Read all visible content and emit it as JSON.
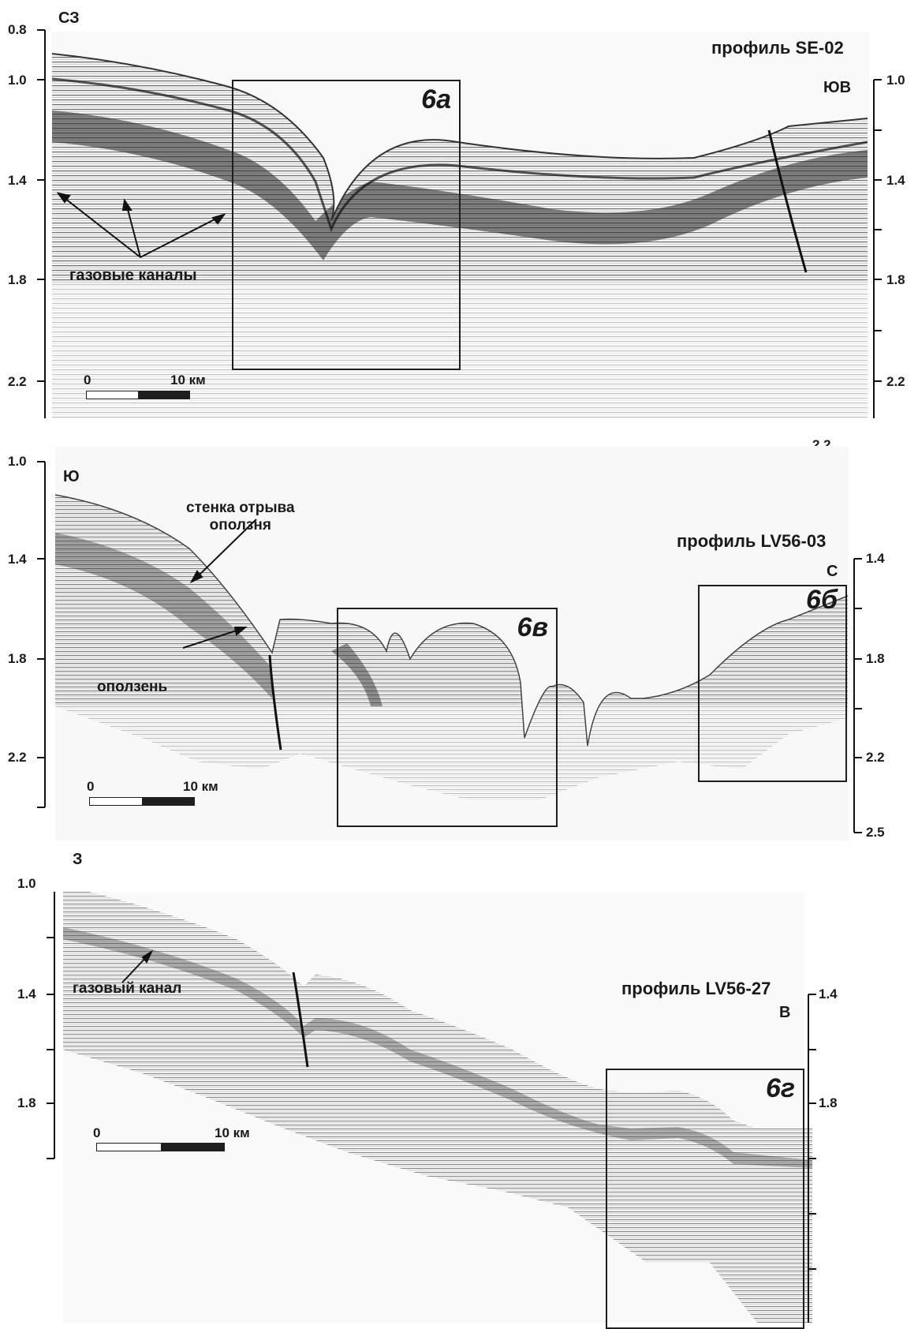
{
  "panels": [
    {
      "profile": "профиль SE-02",
      "dir_left": "СЗ",
      "dir_right": "ЮВ",
      "left_ticks": [
        "0.8",
        "1.0",
        "1.4",
        "1.8",
        "2.2"
      ],
      "right_ticks": [
        "1.0",
        "1.4",
        "1.8",
        "2.2"
      ],
      "below_tick": "2.2",
      "box_label": "6а",
      "annotations": [
        "газовые каналы"
      ],
      "scale": {
        "zero": "0",
        "end": "10 км"
      }
    },
    {
      "profile": "профиль LV56-03",
      "dir_left": "Ю",
      "dir_right": "С",
      "left_ticks": [
        "1.0",
        "1.4",
        "1.8",
        "2.2"
      ],
      "right_ticks": [
        "1.4",
        "1.8",
        "2.2",
        "2.5"
      ],
      "box_labels": [
        "6в",
        "6б"
      ],
      "annotations": [
        "стенка отрыва\nоползня",
        "оползень"
      ],
      "scale": {
        "zero": "0",
        "end": "10 км"
      }
    },
    {
      "profile": "профиль LV56-27",
      "dir_left": "З",
      "dir_right": "В",
      "left_ticks": [
        "1.0",
        "1.4",
        "1.8"
      ],
      "right_ticks": [
        "1.4",
        "1.8"
      ],
      "box_label": "6г",
      "annotations": [
        "газовый канал"
      ],
      "scale": {
        "zero": "0",
        "end": "10 км"
      }
    }
  ]
}
